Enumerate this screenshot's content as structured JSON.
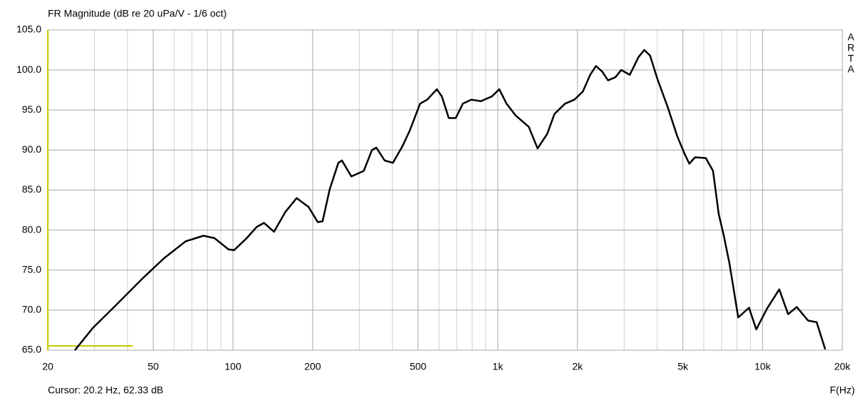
{
  "chart_data": {
    "type": "line",
    "title": "FR Magnitude (dB re 20 uPa/V - 1/6 oct)",
    "x_label": "F(Hz)",
    "cursor_text": "Cursor: 20.2 Hz, 62.33 dB",
    "side_label": [
      "A",
      "R",
      "T",
      "A"
    ],
    "xscale": "log",
    "grid": true,
    "xlim": [
      20,
      20000
    ],
    "ylim": [
      65,
      105
    ],
    "xticks": [
      20,
      50,
      100,
      200,
      500,
      {
        "value": 1000,
        "label": "1k"
      },
      {
        "value": 2000,
        "label": "2k"
      },
      {
        "value": 5000,
        "label": "5k"
      },
      {
        "value": 10000,
        "label": "10k"
      },
      {
        "value": 20000,
        "label": "20k"
      }
    ],
    "xgrid": [
      30,
      40,
      60,
      70,
      80,
      90,
      300,
      400,
      600,
      700,
      800,
      900,
      3000,
      4000,
      6000,
      7000,
      8000,
      9000
    ],
    "yticks": [
      {
        "value": 105,
        "label": "105.0"
      },
      {
        "value": 100,
        "label": "100.0"
      },
      {
        "value": 95,
        "label": "95.0"
      },
      {
        "value": 90,
        "label": "90.0"
      },
      {
        "value": 85,
        "label": "85.0"
      },
      {
        "value": 80,
        "label": "80.0"
      },
      {
        "value": 75,
        "label": "75.0"
      },
      {
        "value": 70,
        "label": "70.0"
      },
      {
        "value": 65,
        "label": "65.0"
      }
    ],
    "series": [
      {
        "color": "#000000",
        "x": [
          25.3,
          29.6,
          35.6,
          45.7,
          55,
          66.3,
          77.4,
          85.2,
          96.2,
          101,
          112,
          123,
          131,
          143,
          158,
          174,
          193,
          209,
          218,
          232,
          250,
          258,
          280,
          312,
          335,
          348,
          374,
          402,
          437,
          465,
          509,
          542,
          589,
          615,
          653,
          694,
          738,
          795,
          863,
          950,
          1013,
          1079,
          1169,
          1310,
          1414,
          1536,
          1637,
          1795,
          1948,
          2095,
          2234,
          2349,
          2481,
          2609,
          2782,
          2925,
          3153,
          3399,
          3575,
          3760,
          4005,
          4380,
          4755,
          5066,
          5290,
          5560,
          6106,
          6500,
          6830,
          7140,
          7500,
          8090,
          8885,
          9470,
          10400,
          11560,
          12490,
          13460,
          14860,
          16010,
          17240
        ],
        "values": [
          65.0,
          67.8,
          70.4,
          74.0,
          76.5,
          78.6,
          79.3,
          79.0,
          77.6,
          77.5,
          78.9,
          80.4,
          80.9,
          79.8,
          82.3,
          84.0,
          82.9,
          81.0,
          81.1,
          85.1,
          88.4,
          88.7,
          86.7,
          87.4,
          90.0,
          90.3,
          88.7,
          88.4,
          90.5,
          92.4,
          95.8,
          96.3,
          97.6,
          96.7,
          94.0,
          94.0,
          95.8,
          96.3,
          96.1,
          96.7,
          97.6,
          95.8,
          94.3,
          92.9,
          90.2,
          92.0,
          94.5,
          95.8,
          96.3,
          97.3,
          99.4,
          100.5,
          99.8,
          98.7,
          99.1,
          100.0,
          99.4,
          101.6,
          102.5,
          101.8,
          98.9,
          95.4,
          91.8,
          89.6,
          88.3,
          89.1,
          89.0,
          87.4,
          82.0,
          79.3,
          75.8,
          69.1,
          70.3,
          67.6,
          70.2,
          72.6,
          69.5,
          70.4,
          68.7,
          68.5,
          65.1
        ]
      }
    ]
  }
}
